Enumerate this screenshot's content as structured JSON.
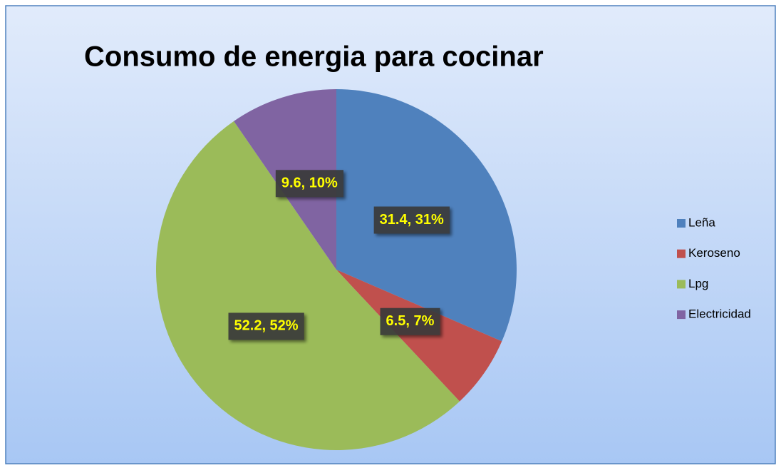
{
  "chart_data": {
    "type": "pie",
    "title": "Consumo de energia para cocinar",
    "categories": [
      "Leña",
      "Keroseno",
      "Lpg",
      "Electricidad"
    ],
    "values": [
      31.4,
      6.5,
      52.2,
      9.6
    ],
    "value_labels": [
      "31.4, 31%",
      "6.5, 7%",
      "52.2, 52%",
      "9.6, 10%"
    ],
    "colors": [
      "#4f81bd",
      "#c0504d",
      "#9bbb59",
      "#8064a2"
    ],
    "legend": "right"
  }
}
